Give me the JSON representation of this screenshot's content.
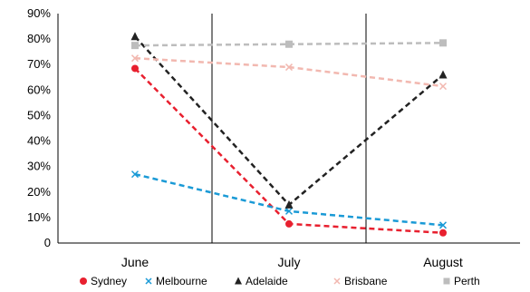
{
  "chart_data": {
    "type": "line",
    "categories": [
      "June",
      "July",
      "August"
    ],
    "ylim": [
      0,
      90
    ],
    "yticks": [
      0,
      10,
      20,
      30,
      40,
      50,
      60,
      70,
      80,
      90
    ],
    "ytick_labels": [
      "0",
      "10%",
      "20%",
      "30%",
      "40%",
      "50%",
      "60%",
      "70%",
      "80%",
      "90%"
    ],
    "grid": false,
    "category_separators": true,
    "legend_position": "bottom",
    "series": [
      {
        "name": "Sydney",
        "values": [
          68.5,
          7.5,
          4
        ],
        "color": "#e8202f",
        "marker": "circle"
      },
      {
        "name": "Melbourne",
        "values": [
          27,
          12.5,
          7
        ],
        "color": "#1a9ad6",
        "marker": "x"
      },
      {
        "name": "Adelaide",
        "values": [
          81,
          15,
          66
        ],
        "color": "#222222",
        "marker": "triangle"
      },
      {
        "name": "Brisbane",
        "values": [
          72.5,
          69,
          61.5
        ],
        "color": "#f2b8b0",
        "marker": "x"
      },
      {
        "name": "Perth",
        "values": [
          77.5,
          78,
          78.5
        ],
        "color": "#bdbdbd",
        "marker": "square"
      }
    ]
  }
}
